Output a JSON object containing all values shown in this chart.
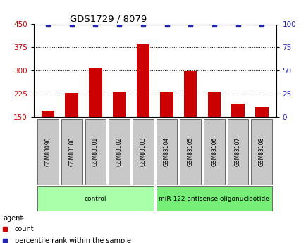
{
  "title": "GDS1729 / 8079",
  "categories": [
    "GSM83090",
    "GSM83100",
    "GSM83101",
    "GSM83102",
    "GSM83103",
    "GSM83104",
    "GSM83105",
    "GSM83106",
    "GSM83107",
    "GSM83108"
  ],
  "counts": [
    170,
    228,
    310,
    232,
    385,
    232,
    298,
    232,
    192,
    182
  ],
  "percentile_ranks": [
    100,
    100,
    100,
    100,
    100,
    100,
    100,
    100,
    100,
    100
  ],
  "ylim_left": [
    150,
    450
  ],
  "ylim_right": [
    0,
    100
  ],
  "yticks_left": [
    150,
    225,
    300,
    375,
    450
  ],
  "yticks_right": [
    0,
    25,
    50,
    75,
    100
  ],
  "bar_color": "#cc0000",
  "percentile_color": "#2222bb",
  "bar_width": 0.55,
  "grid_dotted_ticks": [
    225,
    300,
    375
  ],
  "background_xticklabels": "#c8c8c8",
  "agent_groups": [
    {
      "label": "control",
      "start": 0,
      "end": 4,
      "color": "#aaffaa"
    },
    {
      "label": "miR-122 antisense oligonucleotide",
      "start": 5,
      "end": 9,
      "color": "#77ee77"
    }
  ],
  "legend_items": [
    {
      "label": "count",
      "color": "#cc0000"
    },
    {
      "label": "percentile rank within the sample",
      "color": "#2222bb"
    }
  ],
  "bar_bottom": 150,
  "agent_label": "agent",
  "title_fontsize": 9.5,
  "tick_fontsize": 7.5,
  "sample_fontsize": 5.5,
  "legend_fontsize": 7,
  "group_label_fontsize": 6.5,
  "percentile_markersize": 5
}
